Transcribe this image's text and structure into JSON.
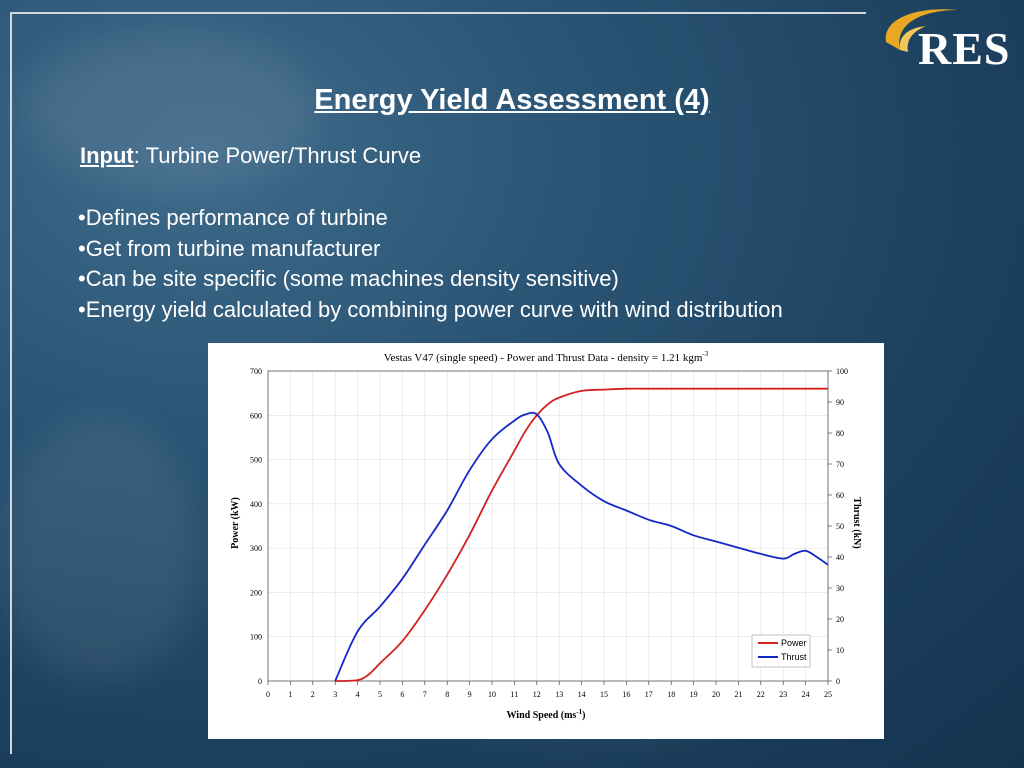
{
  "slide": {
    "title": "Energy Yield Assessment (4)",
    "input_label": "Input",
    "input_colon": ":",
    "input_text": " Turbine  Power/Thrust  Curve",
    "bullets": [
      "•Defines performance of turbine",
      "•Get from turbine manufacturer",
      "•Can be site specific (some machines density sensitive)",
      "•Energy yield calculated by combining power curve with wind distribution"
    ],
    "logo_text": "RES",
    "colors": {
      "background": "#1e4766",
      "title": "#ffffff",
      "logo_swoosh": "#e8a825"
    }
  },
  "chart_data": {
    "type": "line",
    "title": "Vestas V47 (single speed) - Power and Thrust Data - density = 1.21 kgm",
    "title_sup": "-3",
    "xlabel": "Wind Speed (ms",
    "xlabel_sup": "-1",
    "xlabel_end": ")",
    "ylabel_left": "Power (kW)",
    "ylabel_right": "Thrust (kN)",
    "xlim": [
      0,
      25
    ],
    "ylim_left": [
      0,
      700
    ],
    "ylim_right": [
      0,
      100
    ],
    "x_ticks": [
      "0",
      "1",
      "2",
      "3",
      "4",
      "5",
      "6",
      "7",
      "8",
      "9",
      "10",
      "11",
      "12",
      "13",
      "14",
      "15",
      "16",
      "17",
      "18",
      "19",
      "20",
      "21",
      "22",
      "23",
      "24",
      "25"
    ],
    "y_left_ticks": [
      "0",
      "100",
      "200",
      "300",
      "400",
      "500",
      "600",
      "700"
    ],
    "y_right_ticks": [
      "0",
      "10",
      "20",
      "30",
      "40",
      "50",
      "60",
      "70",
      "80",
      "90",
      "100"
    ],
    "grid": true,
    "legend_position": "bottom-right",
    "series": [
      {
        "name": "Power",
        "axis": "left",
        "color": "#d42020",
        "x": [
          3,
          4,
          4.5,
          5,
          6,
          7,
          8,
          9,
          10,
          11,
          11.5,
          12,
          12.5,
          13,
          14,
          15,
          16,
          17,
          18,
          19,
          20,
          21,
          22,
          23,
          24,
          25
        ],
        "y": [
          0,
          2,
          15,
          40,
          90,
          160,
          240,
          330,
          430,
          520,
          565,
          600,
          625,
          640,
          655,
          658,
          660,
          660,
          660,
          660,
          660,
          660,
          660,
          660,
          660,
          660
        ]
      },
      {
        "name": "Thrust",
        "axis": "right",
        "color": "#1428c8",
        "x": [
          3,
          4,
          5,
          6,
          7,
          8,
          9,
          10,
          11,
          11.5,
          12,
          12.5,
          13,
          14,
          15,
          16,
          17,
          18,
          19,
          20,
          21,
          22,
          23,
          23.5,
          24,
          24.5,
          25
        ],
        "y": [
          0,
          16,
          24,
          33,
          44,
          55,
          68,
          78,
          84,
          86,
          86,
          80,
          70,
          63,
          58,
          55,
          52,
          50,
          47,
          45,
          43,
          41,
          39.5,
          41,
          42,
          40,
          37.5
        ]
      }
    ]
  }
}
